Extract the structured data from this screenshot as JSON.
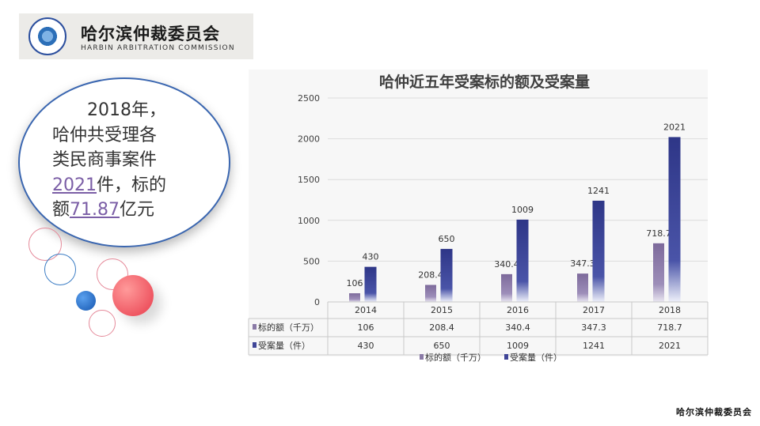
{
  "logo": {
    "name_cn": "哈尔滨仲裁委员会",
    "name_en": "HARBIN ARBITRATION COMMISSION"
  },
  "summary": {
    "line1": "2018年，",
    "line2": "哈仲共受理各",
    "line3": "类民商事案件",
    "cases": "2021",
    "cases_suffix": "件，标的",
    "amount_prefix": "额",
    "amount": "71.87",
    "amount_suffix": "亿元"
  },
  "footer": {
    "watermark": "哈尔滨仲裁委员会"
  },
  "colors": {
    "accent": "#3f4597",
    "amount_series": "#8a7aa6"
  },
  "chart_data": {
    "type": "bar",
    "title": "哈仲近五年受案标的额及受案量",
    "categories": [
      "2014",
      "2015",
      "2016",
      "2017",
      "2018"
    ],
    "series": [
      {
        "name": "标的额（千万）",
        "values": [
          106,
          208.4,
          340.4,
          347.3,
          718.7
        ],
        "labels": [
          "106",
          "208.4",
          "340.4",
          "347.3",
          "718.7"
        ]
      },
      {
        "name": "受案量（件）",
        "values": [
          430,
          650,
          1009,
          1241,
          2021
        ],
        "labels": [
          "430",
          "650",
          "1009",
          "1241",
          "2021"
        ]
      }
    ],
    "ylim": [
      0,
      2500
    ],
    "yticks": [
      "0",
      "500",
      "1000",
      "1500",
      "2000",
      "2500"
    ],
    "grid": true,
    "legend": "bottom",
    "table_below": true
  }
}
